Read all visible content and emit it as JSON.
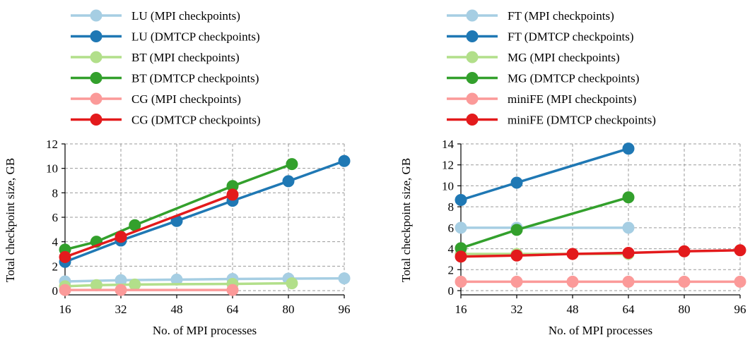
{
  "chart_data": [
    {
      "type": "line",
      "xlabel": "No. of MPI processes",
      "ylabel": "Total checkpoint size, GB",
      "xlim": [
        16,
        96
      ],
      "ylim": [
        0,
        12
      ],
      "xticks": [
        16,
        32,
        48,
        64,
        80,
        96
      ],
      "yticks": [
        0,
        2,
        4,
        6,
        8,
        10,
        12
      ],
      "grid": true,
      "legend_position": "top (above plot)",
      "series": [
        {
          "name": "LU (MPI checkpoints)",
          "color": "#a6cee3",
          "points": [
            [
              16,
              0.75
            ],
            [
              32,
              0.85
            ],
            [
              48,
              0.9
            ],
            [
              64,
              0.95
            ],
            [
              80,
              0.98
            ],
            [
              96,
              1.0
            ]
          ]
        },
        {
          "name": "LU (DMTCP checkpoints)",
          "color": "#1f78b4",
          "points": [
            [
              16,
              2.35
            ],
            [
              32,
              4.1
            ],
            [
              48,
              5.7
            ],
            [
              64,
              7.35
            ],
            [
              80,
              8.95
            ],
            [
              96,
              10.6
            ]
          ]
        },
        {
          "name": "BT (MPI checkpoints)",
          "color": "#b2df8a",
          "points": [
            [
              16,
              0.35
            ],
            [
              25,
              0.45
            ],
            [
              36,
              0.5
            ],
            [
              64,
              0.55
            ],
            [
              81,
              0.6
            ]
          ]
        },
        {
          "name": "BT (DMTCP checkpoints)",
          "color": "#33a02c",
          "points": [
            [
              16,
              3.35
            ],
            [
              25,
              4.0
            ],
            [
              36,
              5.35
            ],
            [
              64,
              8.55
            ],
            [
              81,
              10.35
            ]
          ]
        },
        {
          "name": "CG (MPI checkpoints)",
          "color": "#fb9a99",
          "points": [
            [
              16,
              0.05
            ],
            [
              32,
              0.05
            ],
            [
              64,
              0.05
            ]
          ]
        },
        {
          "name": "CG (DMTCP checkpoints)",
          "color": "#e31a1c",
          "points": [
            [
              16,
              2.75
            ],
            [
              32,
              4.4
            ],
            [
              64,
              7.85
            ]
          ]
        }
      ]
    },
    {
      "type": "line",
      "xlabel": "No. of MPI processes",
      "ylabel": "Total checkpoint size, GB",
      "xlim": [
        16,
        96
      ],
      "ylim": [
        0,
        14
      ],
      "xticks": [
        16,
        32,
        48,
        64,
        80,
        96
      ],
      "yticks": [
        0,
        2,
        4,
        6,
        8,
        10,
        12,
        14
      ],
      "grid": true,
      "legend_position": "top (above plot)",
      "series": [
        {
          "name": "FT (MPI checkpoints)",
          "color": "#a6cee3",
          "points": [
            [
              16,
              6.0
            ],
            [
              32,
              6.0
            ],
            [
              64,
              6.0
            ]
          ]
        },
        {
          "name": "FT (DMTCP checkpoints)",
          "color": "#1f78b4",
          "points": [
            [
              16,
              8.65
            ],
            [
              32,
              10.3
            ],
            [
              64,
              13.55
            ]
          ]
        },
        {
          "name": "MG (MPI checkpoints)",
          "color": "#b2df8a",
          "points": [
            [
              16,
              3.5
            ],
            [
              32,
              3.5
            ],
            [
              64,
              3.5
            ]
          ]
        },
        {
          "name": "MG (DMTCP checkpoints)",
          "color": "#33a02c",
          "points": [
            [
              16,
              4.05
            ],
            [
              32,
              5.8
            ],
            [
              64,
              8.9
            ]
          ]
        },
        {
          "name": "miniFE (MPI checkpoints)",
          "color": "#fb9a99",
          "points": [
            [
              16,
              0.85
            ],
            [
              32,
              0.85
            ],
            [
              48,
              0.85
            ],
            [
              64,
              0.85
            ],
            [
              80,
              0.85
            ],
            [
              96,
              0.85
            ]
          ]
        },
        {
          "name": "miniFE (DMTCP checkpoints)",
          "color": "#e31a1c",
          "points": [
            [
              16,
              3.25
            ],
            [
              32,
              3.35
            ],
            [
              48,
              3.5
            ],
            [
              64,
              3.6
            ],
            [
              80,
              3.75
            ],
            [
              96,
              3.85
            ]
          ]
        }
      ]
    }
  ]
}
